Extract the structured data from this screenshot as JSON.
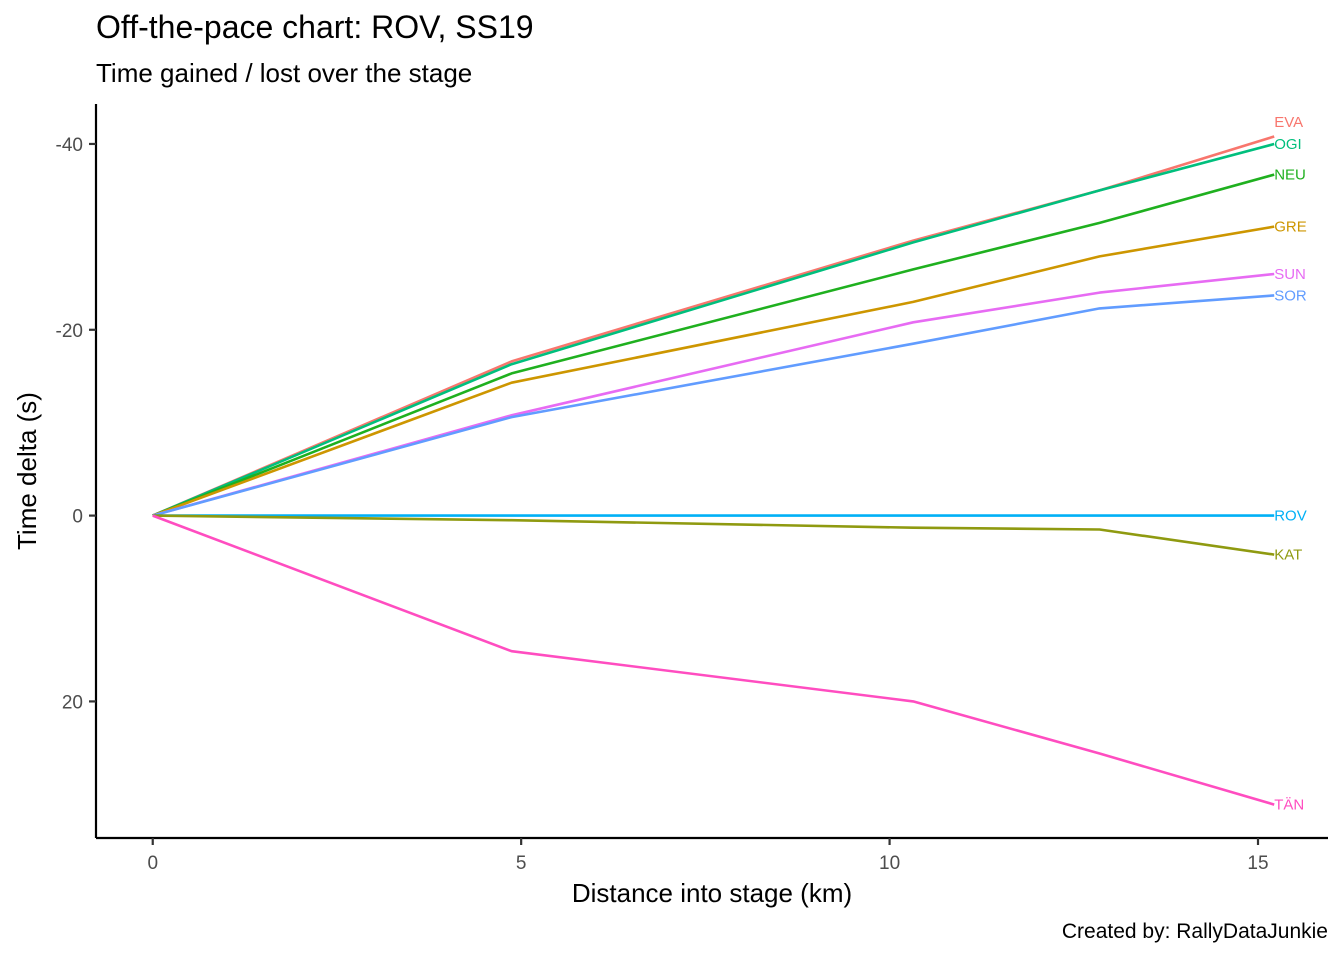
{
  "title": "Off-the-pace chart: ROV, SS19",
  "subtitle": "Time gained / lost over the stage",
  "caption": "Created by: RallyDataJunkie",
  "chart_data": {
    "type": "line",
    "title": "Off-the-pace chart: ROV, SS19",
    "subtitle": "Time gained / lost over the stage",
    "xlabel": "Distance into stage (km)",
    "ylabel": "Time delta (s)",
    "xlim": [
      -0.77,
      15.95
    ],
    "ylim": [
      34.7,
      -44.3
    ],
    "y_reversed": true,
    "x_ticks": [
      0,
      5,
      10,
      15
    ],
    "x_tick_labels": [
      "0",
      "5",
      "10",
      "15"
    ],
    "y_ticks": [
      -40,
      -20,
      0,
      20
    ],
    "y_tick_labels": [
      "-40",
      "-20",
      "0",
      "20"
    ],
    "grid": false,
    "legend": "none (series labelled at line ends)",
    "x": [
      0,
      4.87,
      10.32,
      12.85,
      15.22
    ],
    "series": [
      {
        "name": "EVA",
        "color": "#F8766D",
        "values": [
          0,
          -16.6,
          -29.6,
          -35.0,
          -40.8
        ]
      },
      {
        "name": "OGI",
        "color": "#00BF7D",
        "values": [
          0,
          -16.3,
          -29.4,
          -35.0,
          -40.0
        ]
      },
      {
        "name": "NEU",
        "color": "#1FB01F",
        "values": [
          0,
          -15.3,
          -26.5,
          -31.5,
          -36.7
        ]
      },
      {
        "name": "GRE",
        "color": "#CD9600",
        "values": [
          0,
          -14.3,
          -23.0,
          -27.9,
          -31.1
        ]
      },
      {
        "name": "SUN",
        "color": "#E76BF3",
        "values": [
          0,
          -10.8,
          -20.8,
          -24.0,
          -26.0
        ]
      },
      {
        "name": "SOR",
        "color": "#619CFF",
        "values": [
          0,
          -10.6,
          -18.5,
          -22.3,
          -23.7
        ]
      },
      {
        "name": "ROV",
        "color": "#00B0F6",
        "values": [
          0,
          0,
          0,
          0,
          0
        ]
      },
      {
        "name": "KAT",
        "color": "#8F9A10",
        "values": [
          0,
          0.5,
          1.3,
          1.5,
          4.2
        ]
      },
      {
        "name": "TÄN",
        "color": "#FF4DC0",
        "values": [
          0,
          14.6,
          20.0,
          25.6,
          31.1
        ]
      }
    ]
  }
}
